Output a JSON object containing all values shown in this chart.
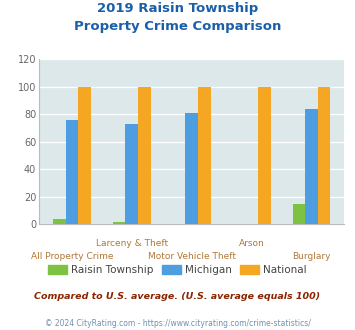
{
  "title_line1": "2019 Raisin Township",
  "title_line2": "Property Crime Comparison",
  "categories": [
    "All Property Crime",
    "Larceny & Theft",
    "Motor Vehicle Theft",
    "Arson",
    "Burglary"
  ],
  "raisin": [
    4,
    2,
    0,
    0,
    15
  ],
  "michigan": [
    76,
    73,
    81,
    0,
    84
  ],
  "national": [
    100,
    100,
    100,
    100,
    100
  ],
  "color_raisin": "#7dc242",
  "color_michigan": "#4d9de0",
  "color_national": "#f5a623",
  "color_bg_plot": "#dde8ea",
  "color_bg_fig": "#ffffff",
  "ylim": [
    0,
    120
  ],
  "yticks": [
    0,
    20,
    40,
    60,
    80,
    100,
    120
  ],
  "title_color": "#1a5fa8",
  "xlabel_color": "#b07838",
  "legend_label_raisin": "Raisin Township",
  "legend_label_michigan": "Michigan",
  "legend_label_national": "National",
  "note_text": "Compared to U.S. average. (U.S. average equals 100)",
  "note_color": "#8b2500",
  "footer_text": "© 2024 CityRating.com - https://www.cityrating.com/crime-statistics/",
  "footer_color": "#7090b0"
}
